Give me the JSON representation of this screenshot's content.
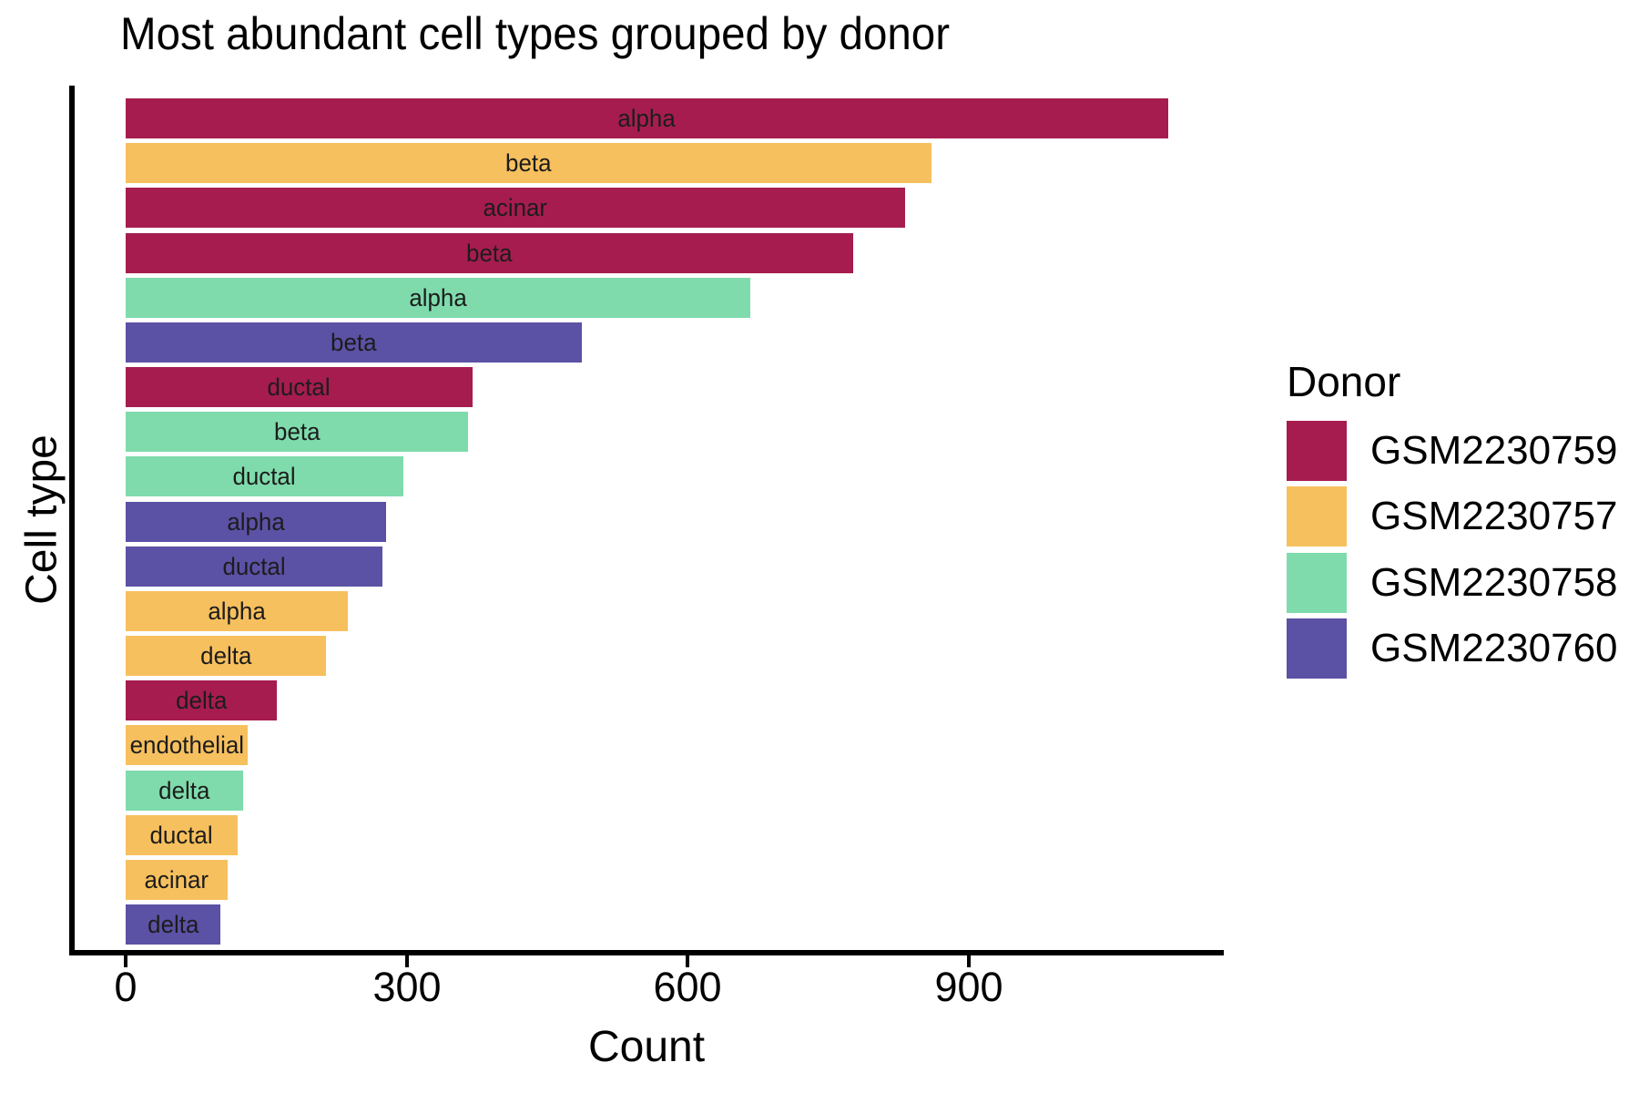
{
  "chart_data": {
    "type": "bar",
    "orientation": "horizontal",
    "title": "Most abundant cell types grouped by donor",
    "xlabel": "Count",
    "ylabel": "Cell type",
    "xlim": [
      0,
      1170
    ],
    "xticks": [
      0,
      300,
      600,
      900
    ],
    "grid": false,
    "legend": {
      "title": "Donor",
      "position": "right",
      "entries": [
        "GSM2230759",
        "GSM2230757",
        "GSM2230758",
        "GSM2230760"
      ]
    },
    "donor_colors": {
      "GSM2230759": "#A61C4F",
      "GSM2230757": "#F7C05E",
      "GSM2230758": "#7FDBAC",
      "GSM2230760": "#5B51A5"
    },
    "bars": [
      {
        "label": "alpha",
        "donor": "GSM2230759",
        "value": 1113
      },
      {
        "label": "beta",
        "donor": "GSM2230757",
        "value": 860
      },
      {
        "label": "acinar",
        "donor": "GSM2230759",
        "value": 832
      },
      {
        "label": "beta",
        "donor": "GSM2230759",
        "value": 776
      },
      {
        "label": "alpha",
        "donor": "GSM2230758",
        "value": 667
      },
      {
        "label": "beta",
        "donor": "GSM2230760",
        "value": 487
      },
      {
        "label": "ductal",
        "donor": "GSM2230759",
        "value": 370
      },
      {
        "label": "beta",
        "donor": "GSM2230758",
        "value": 365
      },
      {
        "label": "ductal",
        "donor": "GSM2230758",
        "value": 296
      },
      {
        "label": "alpha",
        "donor": "GSM2230760",
        "value": 278
      },
      {
        "label": "ductal",
        "donor": "GSM2230760",
        "value": 274
      },
      {
        "label": "alpha",
        "donor": "GSM2230757",
        "value": 237
      },
      {
        "label": "delta",
        "donor": "GSM2230757",
        "value": 214
      },
      {
        "label": "delta",
        "donor": "GSM2230759",
        "value": 161
      },
      {
        "label": "endothelial",
        "donor": "GSM2230757",
        "value": 130
      },
      {
        "label": "delta",
        "donor": "GSM2230758",
        "value": 125
      },
      {
        "label": "ductal",
        "donor": "GSM2230757",
        "value": 120
      },
      {
        "label": "acinar",
        "donor": "GSM2230757",
        "value": 109
      },
      {
        "label": "delta",
        "donor": "GSM2230760",
        "value": 101
      }
    ],
    "text_color": "#000000",
    "axis_color": "#000000",
    "background_color": "#ffffff"
  }
}
